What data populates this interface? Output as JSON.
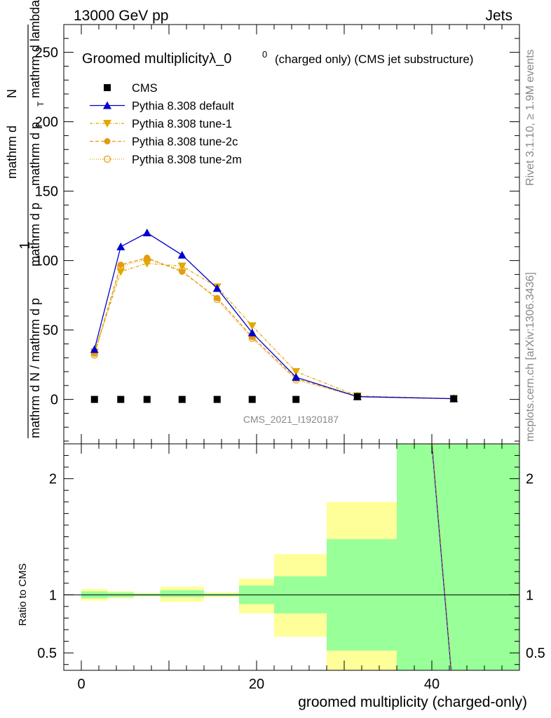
{
  "header": {
    "left": "13000 GeV pp",
    "right": "Jets"
  },
  "side": {
    "rivet": "Rivet 3.1.10, ≥ 1.9M events",
    "mcplots": "mcplots.cern.ch [arXiv:1306.3436]"
  },
  "chart_data": {
    "type": "line",
    "title_main": "Groomed multiplicityλ_0",
    "title_sup": "0",
    "title_sub": "(charged only) (CMS jet substructure)",
    "ylabel_num": "1",
    "ylabel_den": "mathrm d N / mathrm d p",
    "ylabel_den2": "mathrm d p",
    "ylabel_top": "mathrm d",
    "ylabel_top2": "N",
    "ylabel_den3": "mathrm d lambda",
    "ylabel_den4": "mathrm d p",
    "ylabel_den5": "mathrm d lambda",
    "ylabel_sub": "T",
    "xlabel": "groomed multiplicity (charged-only)",
    "ratio_ylabel": "Ratio to CMS",
    "watermark": "CMS_2021_I1920187",
    "xlim": [
      -2,
      50
    ],
    "ylim": [
      -32,
      270
    ],
    "ratio_ylim": [
      0.35,
      2.3
    ],
    "x_ticks": [
      0,
      20,
      40
    ],
    "y_ticks": [
      0,
      50,
      100,
      150,
      200,
      250
    ],
    "ratio_ticks": [
      0.5,
      1,
      2
    ],
    "bins": [
      [
        0,
        3
      ],
      [
        3,
        6
      ],
      [
        6,
        9
      ],
      [
        9,
        14
      ],
      [
        14,
        18
      ],
      [
        18,
        22
      ],
      [
        22,
        28
      ],
      [
        28,
        36
      ],
      [
        36,
        50
      ]
    ],
    "x": [
      1.5,
      4.5,
      7.5,
      11.5,
      15.5,
      19.5,
      24.5,
      31.5,
      42.5
    ],
    "cms": [
      0,
      0,
      0,
      0,
      0,
      0,
      0,
      0,
      0
    ],
    "band_inner": [
      [
        0.97,
        1.03
      ],
      [
        0.98,
        1.02
      ],
      [
        0.99,
        1.01
      ],
      [
        0.98,
        1.04
      ],
      [
        0.99,
        1.01
      ],
      [
        0.92,
        1.08
      ],
      [
        0.84,
        1.16
      ],
      [
        0.52,
        1.48
      ],
      [
        0.35,
        2.3
      ]
    ],
    "band_outer": [
      [
        0.95,
        1.05
      ],
      [
        0.97,
        1.03
      ],
      [
        0.985,
        1.015
      ],
      [
        0.94,
        1.07
      ],
      [
        0.98,
        1.02
      ],
      [
        0.84,
        1.14
      ],
      [
        0.64,
        1.35
      ],
      [
        0.35,
        1.8
      ],
      [
        0.35,
        2.3
      ]
    ],
    "series": [
      {
        "name": "CMS",
        "values": [
          0,
          0,
          0,
          0,
          0,
          0,
          0,
          2,
          0.5
        ],
        "color": "#000000",
        "marker": "square"
      },
      {
        "name": "Pythia 8.308 default",
        "values": [
          36,
          110,
          120,
          104,
          80,
          48,
          16,
          2,
          0.5
        ],
        "color": "#0000cc",
        "marker": "triangle-up",
        "dash": ""
      },
      {
        "name": "Pythia 8.308 tune-1",
        "values": [
          34,
          92,
          98,
          96,
          81,
          53,
          20,
          2.5,
          0.6
        ],
        "color": "#e0a800",
        "marker": "triangle-down",
        "dash": "4 2 1 2"
      },
      {
        "name": "Pythia 8.308 tune-2c",
        "values": [
          33,
          97,
          102,
          92,
          73,
          45,
          15,
          2,
          0.5
        ],
        "color": "#e69a10",
        "marker": "circle",
        "dash": "5 3"
      },
      {
        "name": "Pythia 8.308 tune-2m",
        "values": [
          32,
          96,
          101,
          93,
          72,
          44,
          14,
          2,
          0.5
        ],
        "color": "#e69a10",
        "marker": "circle-open",
        "dash": "1 2"
      }
    ]
  }
}
